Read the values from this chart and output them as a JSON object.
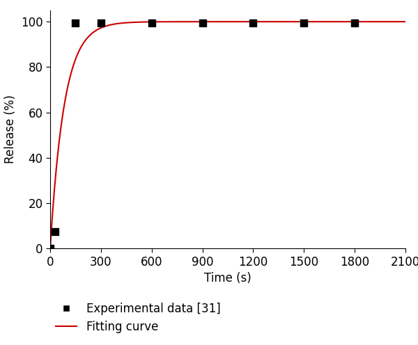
{
  "experimental_x": [
    0,
    30,
    150,
    300,
    600,
    900,
    1200,
    1500,
    1800
  ],
  "experimental_y": [
    0,
    7.5,
    99.5,
    99.5,
    99.5,
    99.5,
    99.5,
    99.5,
    99.5
  ],
  "curve_k": 0.012,
  "curve_max": 100.0,
  "xlabel": "Time (s)",
  "ylabel": "Release (%)",
  "xlim": [
    0,
    2100
  ],
  "ylim": [
    0,
    105
  ],
  "xticks": [
    0,
    300,
    600,
    900,
    1200,
    1500,
    1800,
    2100
  ],
  "yticks": [
    0,
    20,
    40,
    60,
    80,
    100
  ],
  "legend_labels": [
    "Experimental data [31]",
    "Fitting curve"
  ],
  "scatter_color": "#000000",
  "line_color": "#cc0000",
  "background_color": "#ffffff",
  "font_size": 12,
  "marker_size": 7
}
